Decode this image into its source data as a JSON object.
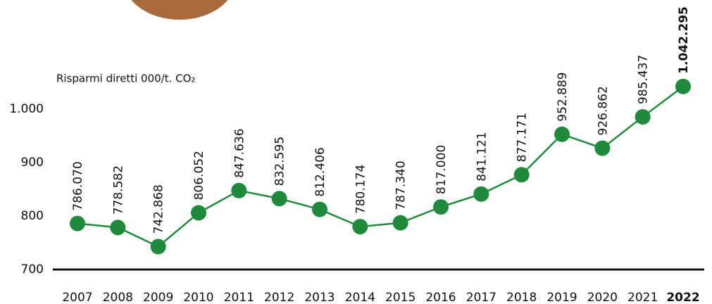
{
  "chart_data": {
    "type": "line",
    "title": "Risparmi diretti 000/t. CO₂",
    "categories": [
      "2007",
      "2008",
      "2009",
      "2010",
      "2011",
      "2012",
      "2013",
      "2014",
      "2015",
      "2016",
      "2017",
      "2018",
      "2019",
      "2020",
      "2021",
      "2022"
    ],
    "values": [
      786.07,
      778.582,
      742.868,
      806.052,
      847.636,
      832.595,
      812.406,
      780.174,
      787.34,
      817,
      841.121,
      877.171,
      952.889,
      926.862,
      985.437,
      1042.295
    ],
    "value_labels": [
      "786.070",
      "778.582",
      "742.868",
      "806.052",
      "847.636",
      "832.595",
      "812.406",
      "780.174",
      "787.340",
      "817.000",
      "841.121",
      "877.171",
      "952.889",
      "926.862",
      "985.437",
      "1.042.295"
    ],
    "color": "#1f8a3c",
    "ylim": [
      700,
      1050
    ],
    "yticks": [
      700,
      800,
      900,
      {
        "value": 1000,
        "label": "1.000"
      }
    ],
    "grid": false
  }
}
